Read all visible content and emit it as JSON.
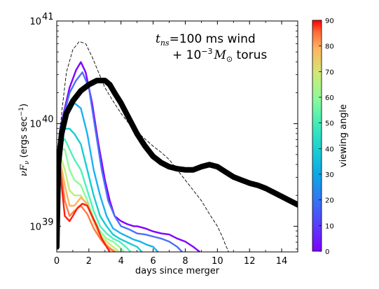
{
  "chart_data": {
    "type": "line",
    "title": "",
    "annotation": {
      "line1_symbol": "t",
      "line1_subscript": "ns",
      "line1_rest": "=100 ms wind",
      "line2_prefix": "+ 10",
      "line2_exponent": "−3",
      "line2_symbol": "M",
      "line2_subscript": "⊙",
      "line2_suffix": " torus"
    },
    "xlabel": "days since merger",
    "ylabel_symbol": "νF",
    "ylabel_subscript": "ν",
    "ylabel_units": " (ergs sec",
    "ylabel_units_exp": "−1",
    "ylabel_units_close": ")",
    "xlim": [
      0,
      15
    ],
    "ylim_log10": [
      38.75,
      41
    ],
    "log_y": true,
    "grid": false,
    "xticks": [
      0,
      2,
      4,
      6,
      8,
      10,
      12,
      14
    ],
    "xtick_labels": [
      "0",
      "2",
      "4",
      "6",
      "8",
      "10",
      "12",
      "14"
    ],
    "yticks_log10": [
      39,
      40,
      41
    ],
    "ytick_base": "10",
    "ytick_exponents": [
      "39",
      "40",
      "41"
    ],
    "colorbar": {
      "label": "viewing angle",
      "range": [
        0,
        90
      ],
      "ticks": [
        0,
        10,
        20,
        30,
        40,
        50,
        60,
        70,
        80,
        90
      ],
      "tick_labels": [
        "0",
        "10",
        "20",
        "30",
        "40",
        "50",
        "60",
        "70",
        "80",
        "90"
      ],
      "colormap": "rainbow"
    },
    "series": [
      {
        "angle": 0,
        "color": "#8000ff",
        "x": [
          0,
          0.2,
          0.5,
          0.8,
          1.2,
          1.5,
          1.8,
          2.2,
          2.6,
          3.0,
          3.3,
          3.6,
          4.0,
          4.4,
          4.8,
          5.0,
          5.5,
          6.0,
          6.5,
          7.0,
          7.5,
          8.0,
          8.5,
          8.9
        ],
        "y_log10": [
          38.95,
          39.95,
          40.15,
          40.35,
          40.52,
          40.6,
          40.5,
          40.2,
          39.8,
          39.45,
          39.25,
          39.1,
          39.05,
          39.02,
          39.0,
          39.0,
          38.98,
          38.95,
          38.93,
          38.92,
          38.88,
          38.85,
          38.8,
          38.75
        ]
      },
      {
        "angle": 15,
        "color": "#4c6ff9",
        "x": [
          0,
          0.2,
          0.5,
          0.8,
          1.2,
          1.6,
          2.0,
          2.4,
          2.8,
          3.2,
          3.6,
          4.0,
          4.5,
          5.0,
          5.5,
          6.0,
          6.5,
          7.0,
          7.5,
          7.8
        ],
        "y_log10": [
          38.95,
          39.95,
          40.12,
          40.3,
          40.42,
          40.5,
          40.35,
          39.95,
          39.55,
          39.25,
          39.1,
          39.0,
          38.97,
          38.93,
          38.92,
          38.9,
          38.88,
          38.85,
          38.8,
          38.75
        ]
      },
      {
        "angle": 25,
        "color": "#1ab2f2",
        "x": [
          0,
          0.2,
          0.5,
          0.8,
          1.1,
          1.5,
          1.9,
          2.3,
          2.7,
          3.1,
          3.5,
          4.0,
          4.4,
          4.8,
          5.2,
          5.6,
          6.0,
          6.3
        ],
        "y_log10": [
          38.95,
          39.9,
          40.05,
          40.12,
          40.2,
          40.15,
          39.9,
          39.55,
          39.3,
          39.1,
          38.98,
          38.93,
          38.9,
          38.87,
          38.85,
          38.82,
          38.8,
          38.75
        ]
      },
      {
        "angle": 35,
        "color": "#18cdce",
        "x": [
          0,
          0.2,
          0.5,
          0.8,
          1.1,
          1.5,
          1.9,
          2.3,
          2.7,
          3.1,
          3.5,
          3.9,
          4.3,
          4.7,
          5.0,
          5.3
        ],
        "y_log10": [
          38.95,
          39.85,
          39.95,
          39.95,
          39.9,
          39.8,
          39.55,
          39.3,
          39.1,
          39.0,
          38.92,
          38.88,
          38.85,
          38.82,
          38.8,
          38.75
        ]
      },
      {
        "angle": 45,
        "color": "#4cf2b9",
        "x": [
          0,
          0.2,
          0.5,
          0.8,
          1.1,
          1.5,
          1.9,
          2.3,
          2.7,
          3.1,
          3.5,
          3.9,
          4.3,
          4.6
        ],
        "y_log10": [
          38.95,
          39.8,
          39.85,
          39.75,
          39.65,
          39.55,
          39.35,
          39.15,
          39.0,
          38.93,
          38.88,
          38.85,
          38.8,
          38.75
        ]
      },
      {
        "angle": 55,
        "color": "#8cfa9a",
        "x": [
          0,
          0.2,
          0.5,
          0.8,
          1.1,
          1.5,
          1.9,
          2.3,
          2.7,
          3.1,
          3.5,
          3.9,
          4.2
        ],
        "y_log10": [
          38.95,
          39.75,
          39.75,
          39.55,
          39.45,
          39.4,
          39.25,
          39.08,
          38.95,
          38.88,
          38.85,
          38.8,
          38.75
        ]
      },
      {
        "angle": 65,
        "color": "#c0ec78",
        "x": [
          0,
          0.2,
          0.5,
          0.8,
          1.1,
          1.5,
          1.9,
          2.3,
          2.7,
          3.1,
          3.5,
          3.9
        ],
        "y_log10": [
          38.95,
          39.7,
          39.55,
          39.35,
          39.3,
          39.3,
          39.2,
          39.05,
          38.92,
          38.85,
          38.8,
          38.75
        ]
      },
      {
        "angle": 72,
        "color": "#ffb360",
        "x": [
          0,
          0.2,
          0.5,
          0.8,
          1.1,
          1.5,
          1.9,
          2.3,
          2.7,
          3.1,
          3.4,
          3.7
        ],
        "y_log10": [
          38.95,
          39.65,
          39.4,
          39.2,
          39.2,
          39.28,
          39.22,
          39.05,
          38.9,
          38.82,
          38.78,
          38.75
        ]
      },
      {
        "angle": 80,
        "color": "#ff7b40",
        "x": [
          0,
          0.2,
          0.5,
          0.8,
          1.1,
          1.5,
          1.9,
          2.3,
          2.7,
          3.0,
          3.3,
          3.6
        ],
        "y_log10": [
          38.95,
          39.6,
          39.25,
          39.1,
          39.15,
          39.2,
          39.12,
          38.98,
          38.88,
          38.82,
          38.78,
          38.75
        ]
      },
      {
        "angle": 88,
        "color": "#ff2010",
        "x": [
          0,
          0.2,
          0.5,
          0.8,
          1.0,
          1.3,
          1.6,
          1.9,
          2.2,
          2.5,
          2.8,
          3.1,
          3.3
        ],
        "y_log10": [
          38.95,
          39.55,
          39.1,
          39.05,
          39.1,
          39.18,
          39.22,
          39.2,
          39.1,
          39.0,
          38.88,
          38.8,
          38.75
        ]
      },
      {
        "angle": null,
        "color": "#000000",
        "style": "thick",
        "x": [
          0,
          0.1,
          0.3,
          0.6,
          1.0,
          1.5,
          2.0,
          2.5,
          3.0,
          3.3,
          3.6,
          4.0,
          4.5,
          5.0,
          5.5,
          6.0,
          6.5,
          7.0,
          7.5,
          8.0,
          8.5,
          9.0,
          9.5,
          10.0,
          10.5,
          11.0,
          11.5,
          12.0,
          12.5,
          13.0,
          13.5,
          14.0,
          14.5,
          15.0
        ],
        "y_log10": [
          38.8,
          39.6,
          39.9,
          40.1,
          40.22,
          40.32,
          40.38,
          40.42,
          40.42,
          40.38,
          40.3,
          40.2,
          40.05,
          39.9,
          39.78,
          39.68,
          39.62,
          39.58,
          39.56,
          39.55,
          39.55,
          39.58,
          39.6,
          39.58,
          39.53,
          39.48,
          39.45,
          39.42,
          39.4,
          39.37,
          39.33,
          39.29,
          39.25,
          39.21
        ]
      },
      {
        "angle": null,
        "color": "#000000",
        "style": "dashed",
        "x": [
          0,
          0.05,
          0.15,
          0.3,
          0.6,
          1.0,
          1.4,
          1.8,
          2.2,
          2.6,
          3.0,
          3.5,
          4.0,
          4.5,
          5.0,
          5.5,
          6.0,
          6.5,
          7.0,
          7.5,
          8.0,
          8.5,
          9.0,
          9.5,
          10.0,
          10.3,
          10.5,
          10.7
        ],
        "y_log10": [
          38.75,
          39.2,
          39.8,
          40.1,
          40.5,
          40.72,
          40.8,
          40.78,
          40.65,
          40.5,
          40.35,
          40.22,
          40.1,
          40.0,
          39.92,
          39.85,
          39.78,
          39.72,
          39.65,
          39.55,
          39.45,
          39.35,
          39.25,
          39.12,
          39.0,
          38.9,
          38.82,
          38.75
        ]
      }
    ]
  }
}
